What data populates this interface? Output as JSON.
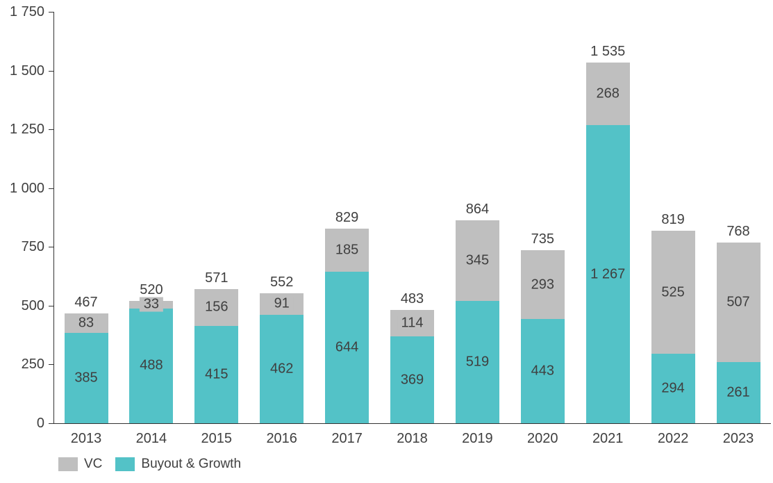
{
  "chart_data": {
    "type": "bar",
    "stacked": true,
    "categories": [
      "2013",
      "2014",
      "2015",
      "2016",
      "2017",
      "2018",
      "2019",
      "2020",
      "2021",
      "2022",
      "2023"
    ],
    "series": [
      {
        "name": "Buyout & Growth",
        "color": "#53C2C7",
        "values": [
          385,
          488,
          415,
          462,
          644,
          369,
          519,
          443,
          1267,
          294,
          261
        ]
      },
      {
        "name": "VC",
        "color": "#BFBFBF",
        "values": [
          83,
          33,
          156,
          91,
          185,
          114,
          345,
          293,
          268,
          525,
          507
        ]
      }
    ],
    "totals": [
      467,
      520,
      571,
      552,
      829,
      483,
      864,
      735,
      1535,
      819,
      768
    ],
    "title": "",
    "xlabel": "",
    "ylabel": "",
    "ylim": [
      0,
      1750
    ],
    "yticks": [
      0,
      250,
      500,
      750,
      1000,
      1250,
      1500,
      1750
    ],
    "grid": false,
    "number_format": "space-thousands",
    "legend_position": "bottom-left"
  },
  "legend": {
    "items": [
      {
        "label": "VC",
        "color": "#BFBFBF"
      },
      {
        "label": "Buyout & Growth",
        "color": "#53C2C7"
      }
    ]
  },
  "colors": {
    "background": "#FFFFFF",
    "axis": "#333333",
    "text": "#3F3F3F",
    "vc": "#BFBFBF",
    "buyout_growth": "#53C2C7"
  }
}
